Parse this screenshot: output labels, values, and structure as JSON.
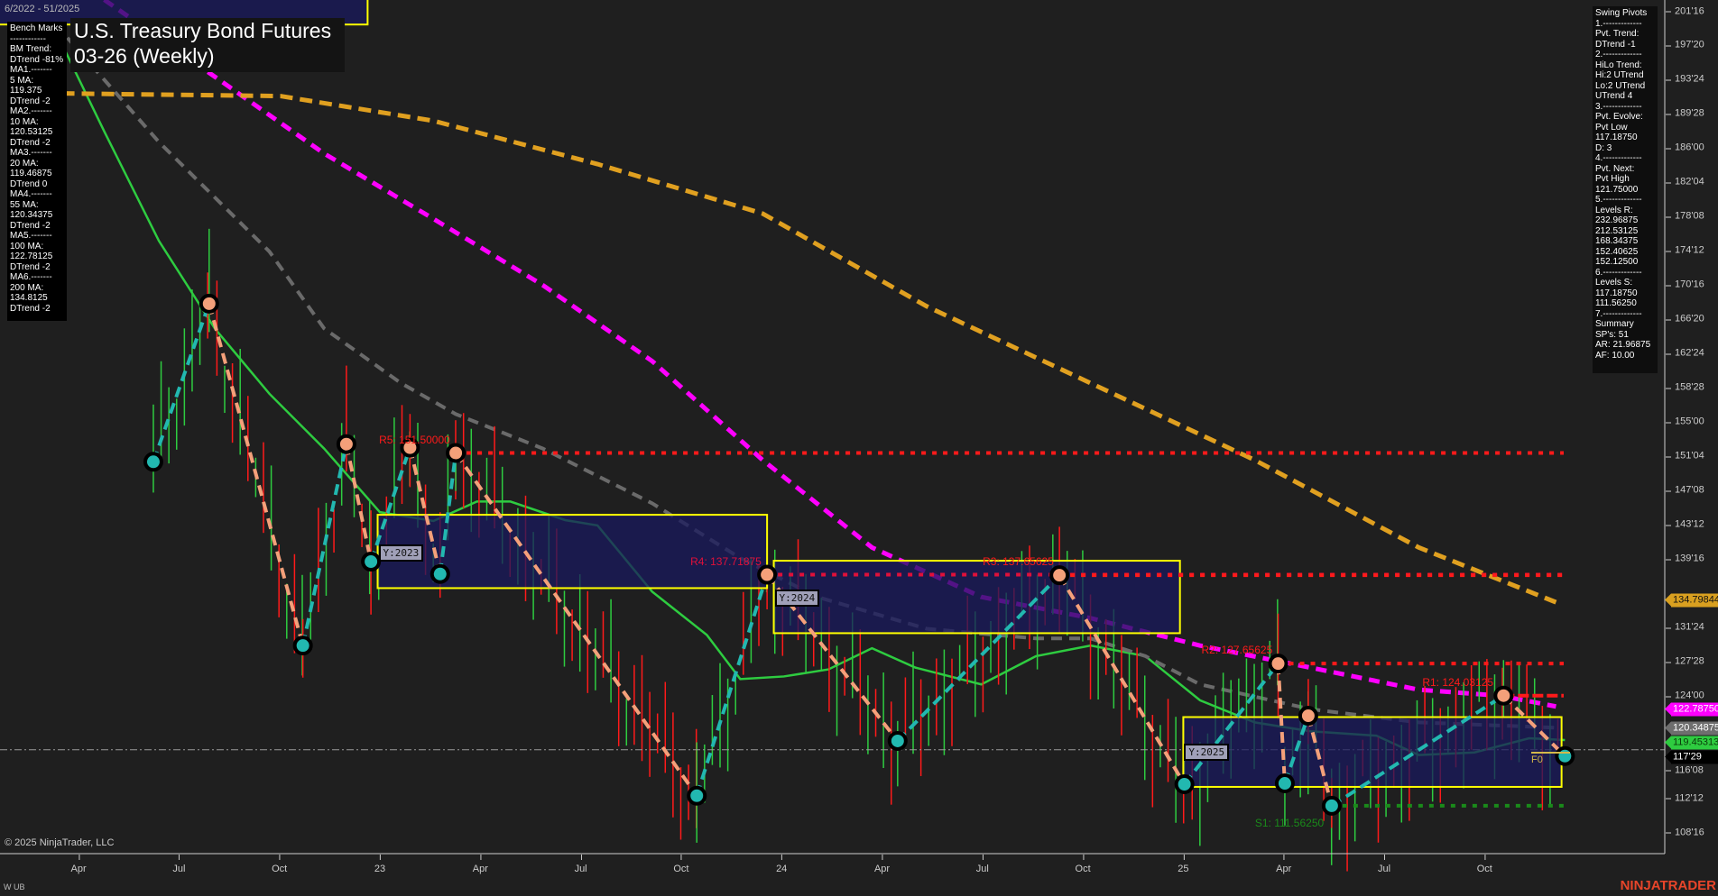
{
  "header": {
    "range_label": "6/2022 - 51/2025",
    "title_line1": "U.S. Treasury Bond Futures",
    "title_line2": "03-26 (Weekly)"
  },
  "benchmarks": [
    "Bench Marks",
    "------------",
    "BM Trend:",
    "DTrend -81%",
    "MA1.-------",
    "5 MA:",
    "119.375",
    "DTrend -2",
    "MA2.-------",
    "10 MA:",
    "120.53125",
    "DTrend -2",
    "MA3.-------",
    "20 MA:",
    "119.46875",
    "DTrend 0",
    "MA4.-------",
    "55 MA:",
    "120.34375",
    "DTrend -2",
    "MA5.-------",
    "100 MA:",
    "122.78125",
    "DTrend -2",
    "MA6.-------",
    "200 MA:",
    "134.8125",
    "DTrend -2"
  ],
  "swing_pivots": [
    "Swing Pivots",
    "1.-------------",
    "Pvt. Trend:",
    "DTrend -1",
    "2.-------------",
    "HiLo Trend:",
    "Hi:2 UTrend",
    "Lo:2 UTrend",
    "UTrend 4",
    "3.-------------",
    "Pvt. Evolve:",
    "Pvt Low",
    "117.18750",
    "D: 3",
    "4.-------------",
    "Pvt. Next:",
    "Pvt High",
    "121.75000",
    "5.-------------",
    "Levels R:",
    "232.96875",
    "212.53125",
    "168.34375",
    "152.40625",
    "152.12500",
    "6.-------------",
    "Levels S:",
    "117.18750",
    "111.56250",
    "7.-------------",
    "Summary",
    "SP's: 51",
    "AR: 21.96875",
    "AF: 10.00"
  ],
  "price_axis": [
    {
      "label": "201'16",
      "value": 201.5
    },
    {
      "label": "197'20",
      "value": 197.625
    },
    {
      "label": "193'24",
      "value": 193.75
    },
    {
      "label": "189'28",
      "value": 189.875
    },
    {
      "label": "186'00",
      "value": 186.0
    },
    {
      "label": "182'04",
      "value": 182.125
    },
    {
      "label": "178'08",
      "value": 178.25
    },
    {
      "label": "174'12",
      "value": 174.375
    },
    {
      "label": "170'16",
      "value": 170.5
    },
    {
      "label": "166'20",
      "value": 166.625
    },
    {
      "label": "162'24",
      "value": 162.75
    },
    {
      "label": "158'28",
      "value": 158.875
    },
    {
      "label": "155'00",
      "value": 155.0
    },
    {
      "label": "151'04",
      "value": 151.125
    },
    {
      "label": "147'08",
      "value": 147.25
    },
    {
      "label": "143'12",
      "value": 143.375
    },
    {
      "label": "139'16",
      "value": 139.5
    },
    {
      "label": "131'24",
      "value": 131.75
    },
    {
      "label": "127'28",
      "value": 127.875
    },
    {
      "label": "124'00",
      "value": 124.0
    },
    {
      "label": "116'08",
      "value": 116.25
    },
    {
      "label": "112'12",
      "value": 112.375
    },
    {
      "label": "108'16",
      "value": 108.5
    }
  ],
  "time_axis": [
    {
      "label": "Apr",
      "date": "2022-04-01"
    },
    {
      "label": "Jul",
      "date": "2022-07-01"
    },
    {
      "label": "Oct",
      "date": "2022-10-01"
    },
    {
      "label": "23",
      "date": "2023-01-01"
    },
    {
      "label": "Apr",
      "date": "2023-04-01"
    },
    {
      "label": "Jul",
      "date": "2023-07-01"
    },
    {
      "label": "Oct",
      "date": "2023-10-01"
    },
    {
      "label": "24",
      "date": "2024-01-01"
    },
    {
      "label": "Apr",
      "date": "2024-04-01"
    },
    {
      "label": "Jul",
      "date": "2024-07-01"
    },
    {
      "label": "Oct",
      "date": "2024-10-01"
    },
    {
      "label": "25",
      "date": "2025-01-01"
    },
    {
      "label": "Apr",
      "date": "2025-04-01"
    },
    {
      "label": "Jul",
      "date": "2025-07-01"
    },
    {
      "label": "Oct",
      "date": "2025-10-01"
    }
  ],
  "price_tags": [
    {
      "label": "134.79844",
      "value": 134.79844,
      "bg": "#d9a020",
      "fg": "#111111"
    },
    {
      "label": "122.78750",
      "value": 122.7875,
      "bg": "#ff00ff",
      "fg": "#ffffff"
    },
    {
      "label": "120.34875",
      "value": 120.34875,
      "bg": "#6e6e6e",
      "fg": "#ffffff"
    },
    {
      "label": "119.45313",
      "value": 119.45313,
      "bg": "#2ecc40",
      "fg": "#0a3a0a"
    },
    {
      "label": "117'29",
      "value": 117.906,
      "bg": "#000000",
      "fg": "#ffffff"
    }
  ],
  "levels": [
    {
      "label": "R5: 151.50000",
      "value": 151.5,
      "from": "2023-03-09",
      "color": "#ff1a1a",
      "style": "dotted"
    },
    {
      "label": "R4: 137.71875",
      "value": 137.71875,
      "from": "2023-12-18",
      "color": "#e0103a",
      "style": "dotted"
    },
    {
      "label": "R3: 137.65625",
      "value": 137.65625,
      "from": "2024-09-10",
      "color": "#ff1a1a",
      "style": "dotted"
    },
    {
      "label": "R2: 127.65625",
      "value": 127.65625,
      "from": "2025-03-26",
      "color": "#ff1a1a",
      "style": "dotted"
    },
    {
      "label": "R1: 124.03125",
      "value": 124.03125,
      "from": "2025-10-18",
      "color": "#ff1a1a",
      "style": "dashed"
    },
    {
      "label": "S1: 111.56250",
      "value": 111.5625,
      "from": "2025-05-14",
      "color": "#1a8a1a",
      "style": "dotted"
    }
  ],
  "last_price": 117.906,
  "year_boxes": [
    {
      "label": "",
      "start": "2022-01-01",
      "end": "2022-12-20",
      "high": 203.0,
      "low": 200.0
    },
    {
      "label": "Y:2023",
      "start": "2022-12-29",
      "end": "2023-12-18",
      "high": 144.5,
      "low": 136.2
    },
    {
      "label": "Y:2024",
      "start": "2023-12-24",
      "end": "2024-12-28",
      "high": 139.3,
      "low": 131.1
    },
    {
      "label": "Y:2025",
      "start": "2025-01-01",
      "end": "2025-12-10",
      "high": 121.6,
      "low": 113.7
    }
  ],
  "forecast_label": "F0",
  "pivots": [
    {
      "date": "2022-06-08",
      "price": 150.5,
      "type": "low"
    },
    {
      "date": "2022-07-28",
      "price": 168.4,
      "type": "high"
    },
    {
      "date": "2022-10-22",
      "price": 129.7,
      "type": "low"
    },
    {
      "date": "2022-12-01",
      "price": 152.5,
      "type": "high"
    },
    {
      "date": "2022-12-23",
      "price": 139.2,
      "type": "low"
    },
    {
      "date": "2023-01-28",
      "price": 152.1,
      "type": "high"
    },
    {
      "date": "2023-02-25",
      "price": 137.8,
      "type": "low"
    },
    {
      "date": "2023-03-09",
      "price": 151.5,
      "type": "high"
    },
    {
      "date": "2023-10-15",
      "price": 112.7,
      "type": "low"
    },
    {
      "date": "2023-12-18",
      "price": 137.71875,
      "type": "high"
    },
    {
      "date": "2024-04-15",
      "price": 118.9,
      "type": "low"
    },
    {
      "date": "2024-09-10",
      "price": 137.65625,
      "type": "high"
    },
    {
      "date": "2025-01-02",
      "price": 114.0,
      "type": "low"
    },
    {
      "date": "2025-03-26",
      "price": 127.65625,
      "type": "high"
    },
    {
      "date": "2025-04-02",
      "price": 114.1,
      "type": "low"
    },
    {
      "date": "2025-04-23",
      "price": 121.75,
      "type": "high"
    },
    {
      "date": "2025-05-14",
      "price": 111.5625,
      "type": "low"
    },
    {
      "date": "2025-10-18",
      "price": 124.03125,
      "type": "high"
    },
    {
      "date": "2025-12-13",
      "price": 117.1875,
      "type": "low"
    }
  ],
  "moving_averages": [
    {
      "name": "200 MA",
      "color": "#e0a020",
      "dash": "14 8",
      "width": 5,
      "points": [
        [
          "2022-03-16",
          192.2
        ],
        [
          "2022-10-02",
          191.9
        ],
        [
          "2023-02-19",
          189.1
        ],
        [
          "2023-07-16",
          184.2
        ],
        [
          "2023-12-14",
          178.6
        ],
        [
          "2024-05-11",
          168.1
        ],
        [
          "2024-10-08",
          159.4
        ],
        [
          "2025-03-05",
          150.7
        ],
        [
          "2025-08-02",
          140.8
        ],
        [
          "2025-12-05",
          134.6
        ]
      ]
    },
    {
      "name": "100 MA",
      "color": "#ff00ff",
      "dash": "12 8",
      "width": 5,
      "points": [
        [
          "2022-04-24",
          202.8
        ],
        [
          "2022-08-03",
          194.1
        ],
        [
          "2022-11-11",
          185.4
        ],
        [
          "2023-02-19",
          178.0
        ],
        [
          "2023-05-27",
          170.5
        ],
        [
          "2023-09-05",
          161.9
        ],
        [
          "2023-12-14",
          150.7
        ],
        [
          "2024-03-22",
          140.8
        ],
        [
          "2024-06-30",
          135.2
        ],
        [
          "2024-10-08",
          132.8
        ],
        [
          "2025-01-16",
          129.7
        ],
        [
          "2025-04-25",
          127.2
        ],
        [
          "2025-08-02",
          124.7
        ],
        [
          "2025-10-16",
          124.0
        ],
        [
          "2025-12-05",
          122.8
        ]
      ]
    },
    {
      "name": "55 MA",
      "color": "#6a6a6a",
      "dash": "12 8",
      "width": 4,
      "points": [
        [
          "2022-03-21",
          198.5
        ],
        [
          "2022-06-13",
          186.7
        ],
        [
          "2022-09-22",
          174.3
        ],
        [
          "2022-11-11",
          165.6
        ],
        [
          "2023-01-20",
          159.4
        ],
        [
          "2023-03-09",
          155.9
        ],
        [
          "2023-05-27",
          152.0
        ],
        [
          "2023-09-05",
          145.8
        ],
        [
          "2023-11-24",
          139.6
        ],
        [
          "2024-02-03",
          135.2
        ],
        [
          "2024-05-11",
          131.6
        ],
        [
          "2024-08-19",
          130.5
        ],
        [
          "2024-10-08",
          130.5
        ],
        [
          "2024-11-27",
          128.5
        ],
        [
          "2025-01-16",
          125.3
        ],
        [
          "2025-04-25",
          122.5
        ],
        [
          "2025-08-02",
          121.0
        ],
        [
          "2025-12-05",
          120.4
        ]
      ]
    },
    {
      "name": "20 MA",
      "color": "#2ecc40",
      "dash": "",
      "width": 2.5,
      "points": [
        [
          "2022-03-16",
          197.8
        ],
        [
          "2022-04-24",
          187.9
        ],
        [
          "2022-06-13",
          175.5
        ],
        [
          "2022-08-03",
          165.6
        ],
        [
          "2022-09-22",
          158.2
        ],
        [
          "2022-11-11",
          152.0
        ],
        [
          "2022-12-31",
          144.8
        ],
        [
          "2023-02-19",
          143.8
        ],
        [
          "2023-03-28",
          146.0
        ],
        [
          "2023-04-28",
          146.0
        ],
        [
          "2023-06-17",
          143.9
        ],
        [
          "2023-07-16",
          143.3
        ],
        [
          "2023-09-05",
          135.8
        ],
        [
          "2023-10-24",
          130.9
        ],
        [
          "2023-11-24",
          125.9
        ],
        [
          "2024-01-03",
          126.2
        ],
        [
          "2024-02-13",
          127.0
        ],
        [
          "2024-03-22",
          129.4
        ],
        [
          "2024-05-01",
          127.2
        ],
        [
          "2024-06-30",
          125.3
        ],
        [
          "2024-08-19",
          128.5
        ],
        [
          "2024-10-08",
          129.7
        ],
        [
          "2024-11-27",
          128.5
        ],
        [
          "2025-01-16",
          123.5
        ],
        [
          "2025-03-05",
          121.0
        ],
        [
          "2025-04-25",
          120.0
        ],
        [
          "2025-06-24",
          119.5
        ],
        [
          "2025-08-02",
          117.3
        ],
        [
          "2025-09-22",
          117.6
        ],
        [
          "2025-11-11",
          119.2
        ],
        [
          "2025-12-13",
          119.0
        ]
      ]
    }
  ],
  "colors": {
    "background": "#1f1f1f",
    "pivot_high": "#f4a07a",
    "pivot_low": "#22b8b0",
    "box_border": "#ffff00",
    "box_fill": "#1a1a5e",
    "bar_up": "#2ecc40",
    "bar_down": "#ff1a1a"
  },
  "footer": {
    "copyright": "© 2025 NinjaTrader, LLC",
    "instrument": "W UB",
    "brand": "NINJATRADER"
  }
}
